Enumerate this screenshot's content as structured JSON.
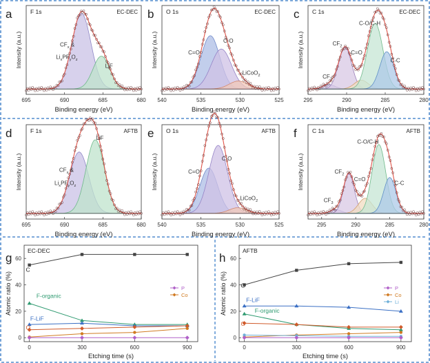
{
  "chart_data": [
    {
      "id": "a",
      "type": "line",
      "subtype": "xps",
      "element": "F 1s",
      "sample": "EC-DEC",
      "xlabel": "Binding energy (eV)",
      "ylabel": "Intensity (a.u.)",
      "xlim": [
        695,
        680
      ],
      "xticks": [
        "695",
        "690",
        "685",
        "680"
      ],
      "peaks": [
        {
          "center": 687.8,
          "height": 0.85,
          "width": 1.25,
          "fill": "#c9c2e6",
          "stroke": "#8e86c6"
        },
        {
          "center": 685.2,
          "height": 0.37,
          "width": 1.1,
          "fill": "#bfe3cc",
          "stroke": "#6fb98a"
        }
      ],
      "baseline": 0.06,
      "labels": [
        {
          "text": "CF",
          "sub": "x",
          "after": " &",
          "x": 688.7,
          "y": 0.54,
          "anchor": "end"
        },
        {
          "text": "Li",
          "sub": "x",
          "after": "PF",
          "sub2": "y",
          "after2": "O",
          "sub3": "z",
          "x": 688.3,
          "y": 0.4,
          "anchor": "end"
        },
        {
          "text": "LiF",
          "x": 684.7,
          "y": 0.3,
          "anchor": "start"
        }
      ]
    },
    {
      "id": "b",
      "type": "line",
      "subtype": "xps",
      "element": "O 1s",
      "sample": "EC-DEC",
      "xlabel": "Binding energy (eV)",
      "ylabel": "Intensity (a.u.)",
      "xlim": [
        540,
        525
      ],
      "xticks": [
        "540",
        "535",
        "530",
        "525"
      ],
      "peaks": [
        {
          "center": 533.8,
          "height": 0.6,
          "width": 1.2,
          "fill": "#aebde6",
          "stroke": "#6f88c8"
        },
        {
          "center": 532.4,
          "height": 0.45,
          "width": 1.3,
          "fill": "#cfc2e6",
          "stroke": "#9583c6"
        },
        {
          "center": 530.2,
          "height": 0.09,
          "width": 1.2,
          "fill": "#f0c7b8",
          "stroke": "#d2876d"
        }
      ],
      "baseline": 0.06,
      "labels": [
        {
          "text": "C=O",
          "x": 535.9,
          "y": 0.45,
          "anchor": "middle"
        },
        {
          "text": "C-O",
          "x": 531.5,
          "y": 0.58,
          "anchor": "middle"
        },
        {
          "text": "LiCoO",
          "sub": "2",
          "x": 529.7,
          "y": 0.22,
          "anchor": "start"
        }
      ]
    },
    {
      "id": "c",
      "type": "line",
      "subtype": "xps",
      "element": "C 1s",
      "sample": "EC-DEC",
      "xlabel": "Binding energy (eV)",
      "ylabel": "Intensity (a.u.)",
      "xlim": [
        295,
        280
      ],
      "xticks": [
        "295",
        "290",
        "285",
        "280"
      ],
      "peaks": [
        {
          "center": 292.3,
          "height": 0.05,
          "width": 0.8,
          "fill": "#c9c2e6",
          "stroke": "#8e86c6"
        },
        {
          "center": 290.2,
          "height": 0.47,
          "width": 0.85,
          "fill": "#d8c8e4",
          "stroke": "#9a7fb8"
        },
        {
          "center": 288.1,
          "height": 0.1,
          "width": 0.9,
          "fill": "#f2dcc2",
          "stroke": "#d2a06d"
        },
        {
          "center": 286.3,
          "height": 0.74,
          "width": 1.0,
          "fill": "#c6e6d4",
          "stroke": "#6fb98a"
        },
        {
          "center": 284.8,
          "height": 0.42,
          "width": 0.9,
          "fill": "#aec9e8",
          "stroke": "#5f8fc6"
        }
      ],
      "baseline": 0.06,
      "labels": [
        {
          "text": "CF",
          "sub": "3",
          "x": 292.5,
          "y": 0.18,
          "anchor": "middle"
        },
        {
          "text": "CF",
          "sub": "2",
          "x": 291.2,
          "y": 0.55,
          "anchor": "middle"
        },
        {
          "text": "C=O",
          "x": 288.7,
          "y": 0.45,
          "anchor": "middle"
        },
        {
          "text": "C-O/C-H",
          "x": 287.0,
          "y": 0.78,
          "anchor": "middle"
        },
        {
          "text": "C-C",
          "x": 283.7,
          "y": 0.36,
          "anchor": "middle"
        }
      ]
    },
    {
      "id": "d",
      "type": "line",
      "subtype": "xps",
      "element": "F 1s",
      "sample": "AFTB",
      "xlabel": "Binding energy (eV)",
      "ylabel": "Intensity (a.u.)",
      "xlim": [
        695,
        680
      ],
      "xticks": [
        "695",
        "690",
        "685",
        "680"
      ],
      "peaks": [
        {
          "center": 688.1,
          "height": 0.65,
          "width": 1.25,
          "fill": "#c9c2e6",
          "stroke": "#8e86c6"
        },
        {
          "center": 686.0,
          "height": 0.78,
          "width": 1.2,
          "fill": "#bfe3cc",
          "stroke": "#6fb98a"
        }
      ],
      "baseline": 0.06,
      "labels": [
        {
          "text": "CF",
          "sub": "x",
          "after": " &",
          "x": 688.8,
          "y": 0.5,
          "anchor": "end"
        },
        {
          "text": "Li",
          "sub": "x",
          "after": "PF",
          "sub2": "y",
          "after2": "O",
          "sub3": "z",
          "x": 688.5,
          "y": 0.36,
          "anchor": "end"
        },
        {
          "text": "LiF",
          "x": 685.9,
          "y": 0.84,
          "anchor": "start"
        }
      ]
    },
    {
      "id": "e",
      "type": "line",
      "subtype": "xps",
      "element": "O 1s",
      "sample": "AFTB",
      "xlabel": "Binding energy (eV)",
      "ylabel": "Intensity (a.u.)",
      "xlim": [
        540,
        525
      ],
      "xticks": [
        "540",
        "535",
        "530",
        "525"
      ],
      "peaks": [
        {
          "center": 534.0,
          "height": 0.48,
          "width": 1.15,
          "fill": "#aebde6",
          "stroke": "#6f88c8"
        },
        {
          "center": 532.8,
          "height": 0.72,
          "width": 1.2,
          "fill": "#cfc2e6",
          "stroke": "#9583c6"
        },
        {
          "center": 530.3,
          "height": 0.06,
          "width": 1.1,
          "fill": "#f0c7b8",
          "stroke": "#d2876d"
        }
      ],
      "baseline": 0.06,
      "labels": [
        {
          "text": "C=O",
          "x": 535.9,
          "y": 0.48,
          "anchor": "middle"
        },
        {
          "text": "C-O",
          "x": 531.7,
          "y": 0.62,
          "anchor": "middle"
        },
        {
          "text": "LiCoO",
          "sub": "2",
          "x": 530.0,
          "y": 0.2,
          "anchor": "start"
        }
      ]
    },
    {
      "id": "f",
      "type": "line",
      "subtype": "xps",
      "element": "C 1s",
      "sample": "AFTB",
      "xlabel": "Binding energy (eV)",
      "ylabel": "Intensity (a.u.)",
      "xlim": [
        297,
        280
      ],
      "xticks": [
        "295",
        "290",
        "285",
        "280"
      ],
      "peaks": [
        {
          "center": 292.9,
          "height": 0.04,
          "width": 0.8,
          "fill": "#c9c2e6",
          "stroke": "#8e86c6"
        },
        {
          "center": 291.0,
          "height": 0.42,
          "width": 0.8,
          "fill": "#d8c8e4",
          "stroke": "#9a7fb8"
        },
        {
          "center": 288.6,
          "height": 0.16,
          "width": 1.0,
          "fill": "#f2dcc2",
          "stroke": "#d2a06d"
        },
        {
          "center": 286.6,
          "height": 0.73,
          "width": 1.0,
          "fill": "#c6e6d4",
          "stroke": "#6fb98a"
        },
        {
          "center": 285.0,
          "height": 0.38,
          "width": 0.9,
          "fill": "#aec9e8",
          "stroke": "#5f8fc6"
        }
      ],
      "baseline": 0.06,
      "labels": [
        {
          "text": "CF",
          "sub": "3",
          "x": 294.0,
          "y": 0.18,
          "anchor": "middle"
        },
        {
          "text": "CF",
          "sub": "2",
          "x": 292.4,
          "y": 0.48,
          "anchor": "middle"
        },
        {
          "text": "C=O",
          "x": 289.4,
          "y": 0.4,
          "anchor": "middle"
        },
        {
          "text": "C-O/C-H",
          "x": 288.2,
          "y": 0.8,
          "anchor": "middle"
        },
        {
          "text": "C-C",
          "x": 283.6,
          "y": 0.36,
          "anchor": "middle"
        }
      ]
    },
    {
      "id": "g",
      "type": "line",
      "title": "EC-DEC",
      "xlabel": "Etching time (s)",
      "ylabel": "Atomic ratio (%)",
      "x": [
        0,
        300,
        600,
        900
      ],
      "xlim": [
        -30,
        960
      ],
      "ylim": [
        -3,
        70
      ],
      "yticks": [
        "0",
        "20",
        "40",
        "60"
      ],
      "series": [
        {
          "name": "C",
          "values": [
            55,
            63,
            63,
            63
          ],
          "color": "#444444",
          "marker": "square"
        },
        {
          "name": "F-organic",
          "values": [
            26,
            13,
            10,
            10
          ],
          "color": "#2e9a70",
          "marker": "triangle"
        },
        {
          "name": "F-LiF",
          "values": [
            10,
            11,
            9,
            9
          ],
          "color": "#3a6fc4",
          "marker": "triangle"
        },
        {
          "name": "O",
          "values": [
            6,
            7,
            8,
            9
          ],
          "color": "#d05a2a",
          "marker": "diamond"
        },
        {
          "name": "Co",
          "values": [
            0.5,
            3,
            4,
            7
          ],
          "color": "#d07a20",
          "marker": "circle"
        },
        {
          "name": "P",
          "values": [
            0,
            0,
            0,
            0
          ],
          "color": "#b060c8",
          "marker": "diamond"
        }
      ],
      "labels": [
        {
          "text": "C",
          "x": -20,
          "y": 50,
          "color": "#222222"
        },
        {
          "text": "F-organic",
          "x": 40,
          "y": 30,
          "color": "#2e9a70"
        },
        {
          "text": "F-LiF",
          "x": 5,
          "y": 13,
          "color": "#3a6fc4"
        },
        {
          "text": "O",
          "x": -20,
          "y": 6,
          "color": "#d05a2a"
        }
      ],
      "legend": [
        {
          "name": "P",
          "color": "#b060c8"
        },
        {
          "name": "Co",
          "color": "#d07a20"
        }
      ]
    },
    {
      "id": "h",
      "type": "line",
      "title": "AFTB",
      "xlabel": "Etching time (s)",
      "ylabel": "Atomic ratio (%)",
      "x": [
        0,
        300,
        600,
        900
      ],
      "xlim": [
        -30,
        960
      ],
      "ylim": [
        -3,
        70
      ],
      "yticks": [
        "0",
        "20",
        "40",
        "60"
      ],
      "series": [
        {
          "name": "C",
          "values": [
            40,
            51,
            56,
            57
          ],
          "color": "#444444",
          "marker": "square"
        },
        {
          "name": "F-LiF",
          "values": [
            24,
            24,
            23,
            20
          ],
          "color": "#3a6fc4",
          "marker": "triangle"
        },
        {
          "name": "F-organic",
          "values": [
            18,
            10,
            7,
            6
          ],
          "color": "#2e9a70",
          "marker": "triangle"
        },
        {
          "name": "O",
          "values": [
            11,
            10,
            8,
            8
          ],
          "color": "#d05a2a",
          "marker": "diamond"
        },
        {
          "name": "Co",
          "values": [
            0.5,
            2,
            3,
            4
          ],
          "color": "#d07a20",
          "marker": "circle"
        },
        {
          "name": "Li",
          "values": [
            2,
            1.5,
            1,
            1
          ],
          "color": "#6fb0d8",
          "marker": "circle"
        },
        {
          "name": "P",
          "values": [
            0,
            0,
            0,
            0
          ],
          "color": "#b060c8",
          "marker": "diamond"
        }
      ],
      "labels": [
        {
          "text": "C",
          "x": -20,
          "y": 38,
          "color": "#222222"
        },
        {
          "text": "F-LiF",
          "x": 10,
          "y": 27,
          "color": "#3a6fc4"
        },
        {
          "text": "F-organic",
          "x": 60,
          "y": 19,
          "color": "#2e9a70"
        },
        {
          "text": "O",
          "x": -20,
          "y": 9,
          "color": "#d05a2a"
        }
      ],
      "legend": [
        {
          "name": "P",
          "color": "#b060c8"
        },
        {
          "name": "Co",
          "color": "#d07a20"
        },
        {
          "name": "Li",
          "color": "#6fb0d8"
        }
      ]
    }
  ],
  "panel_letters": [
    "a",
    "b",
    "c",
    "d",
    "e",
    "f",
    "g",
    "h"
  ]
}
